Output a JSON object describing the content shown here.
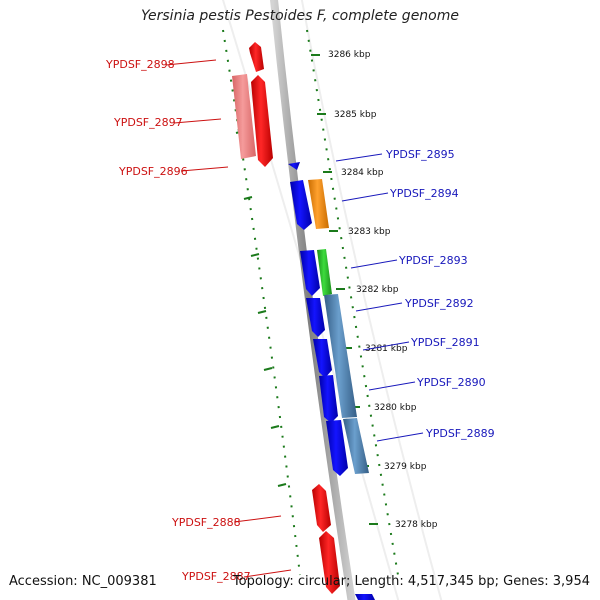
{
  "title": "Yersinia pestis Pestoides F, complete genome",
  "footer": {
    "accession": "Accession: NC_009381",
    "summary": "Topology: circular; Length: 4,517,345 bp; Genes: 3,954"
  },
  "colors": {
    "backbone": "#7f7f7f",
    "tick_inner": "#1b7a1b",
    "tick_outer": "#1b7a1b",
    "red_gene": "#e60f10",
    "pink_gene": "#ec7777",
    "blue_gene": "#0d0de6",
    "orange_gene": "#f28f12",
    "green_gene": "#2fb82f",
    "steel_gene": "#4c7fad",
    "left_label": "#cc1111",
    "right_label": "#1818bb",
    "scale_label": "#111111"
  },
  "scale_labels": [
    "3286 kbp",
    "3285 kbp",
    "3284 kbp",
    "3283 kbp",
    "3282 kbp",
    "3281 kbp",
    "3280 kbp",
    "3279 kbp",
    "3278 kbp"
  ],
  "left_labels": [
    "YPDSF_2898",
    "YPDSF_2897",
    "YPDSF_2896",
    "YPDSF_2888",
    "YPDSF_2887"
  ],
  "right_labels": [
    "YPDSF_2895",
    "YPDSF_2894",
    "YPDSF_2893",
    "YPDSF_2892",
    "YPDSF_2891",
    "YPDSF_2890",
    "YPDSF_2889"
  ],
  "genes": [
    {
      "id": "gene-top-left-red-small",
      "color_key": "red_gene"
    },
    {
      "id": "gene-top-left-red-large",
      "color_key": "red_gene"
    },
    {
      "id": "gene-top-left-pink",
      "color_key": "pink_gene"
    },
    {
      "id": "gene-blue-small",
      "color_key": "blue_gene"
    },
    {
      "id": "gene-2894-blue",
      "color_key": "blue_gene"
    },
    {
      "id": "gene-2894-orange",
      "color_key": "orange_gene"
    },
    {
      "id": "gene-2893-blue",
      "color_key": "blue_gene"
    },
    {
      "id": "gene-2893-green",
      "color_key": "green_gene"
    },
    {
      "id": "gene-2892-blue",
      "color_key": "blue_gene"
    },
    {
      "id": "gene-2891-blue",
      "color_key": "blue_gene"
    },
    {
      "id": "gene-2890-blue",
      "color_key": "blue_gene"
    },
    {
      "id": "gene-2889-blue",
      "color_key": "blue_gene"
    },
    {
      "id": "gene-2892-steel",
      "color_key": "steel_gene"
    },
    {
      "id": "gene-2889-steel",
      "color_key": "steel_gene"
    },
    {
      "id": "gene-bottom-red-upper",
      "color_key": "red_gene"
    },
    {
      "id": "gene-bottom-red-lower",
      "color_key": "red_gene"
    },
    {
      "id": "gene-bottom-blue",
      "color_key": "blue_gene"
    }
  ]
}
